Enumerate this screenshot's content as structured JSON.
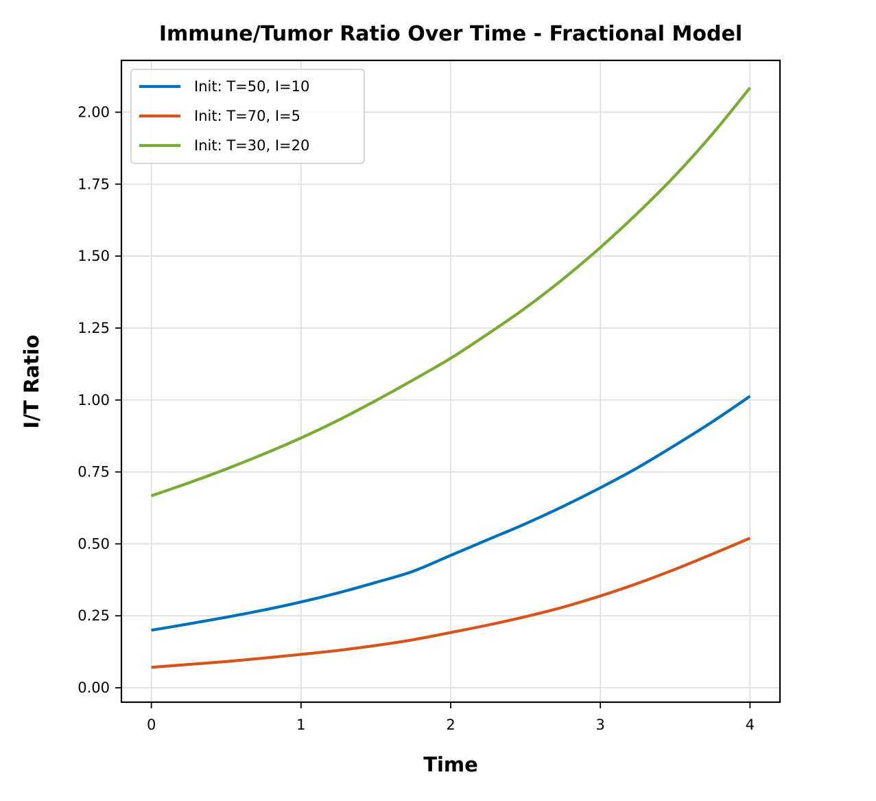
{
  "chart_data": {
    "type": "line",
    "title": "Immune/Tumor Ratio Over Time - Fractional Model",
    "xlabel": "Time",
    "ylabel": "I/T Ratio",
    "xlim": [
      -0.2,
      4.2
    ],
    "ylim": [
      -0.05,
      2.18
    ],
    "xticks": [
      0,
      1,
      2,
      3,
      4
    ],
    "xtick_labels": [
      "0",
      "1",
      "2",
      "3",
      "4"
    ],
    "yticks": [
      0,
      0.25,
      0.5,
      0.75,
      1.0,
      1.25,
      1.5,
      1.75,
      2.0
    ],
    "ytick_labels": [
      "0.00",
      "0.25",
      "0.50",
      "0.75",
      "1.00",
      "1.25",
      "1.50",
      "1.75",
      "2.00"
    ],
    "grid": true,
    "legend_position": "upper-left",
    "x": [
      0,
      0.25,
      0.5,
      0.75,
      1.0,
      1.25,
      1.5,
      1.75,
      2.0,
      2.25,
      2.5,
      2.75,
      3.0,
      3.25,
      3.5,
      3.75,
      4.0
    ],
    "series": [
      {
        "name": "Init: T=50, I=10",
        "color": "#0072BD",
        "values": [
          0.2,
          0.222,
          0.245,
          0.27,
          0.298,
          0.33,
          0.366,
          0.405,
          0.46,
          0.515,
          0.57,
          0.63,
          0.695,
          0.765,
          0.843,
          0.925,
          1.013
        ]
      },
      {
        "name": "Init: T=70, I=5",
        "color": "#D95319",
        "values": [
          0.071,
          0.081,
          0.091,
          0.103,
          0.116,
          0.13,
          0.147,
          0.167,
          0.192,
          0.218,
          0.247,
          0.28,
          0.319,
          0.363,
          0.412,
          0.465,
          0.52
        ]
      },
      {
        "name": "Init: T=30, I=20",
        "color": "#77AC30",
        "values": [
          0.667,
          0.712,
          0.76,
          0.812,
          0.868,
          0.93,
          0.998,
          1.07,
          1.145,
          1.23,
          1.32,
          1.42,
          1.53,
          1.65,
          1.78,
          1.925,
          2.085
        ]
      }
    ]
  }
}
